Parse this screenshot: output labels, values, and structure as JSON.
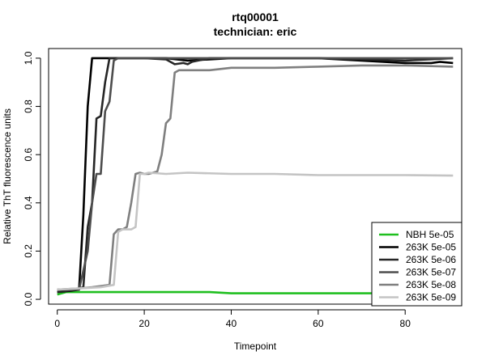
{
  "chart_data": {
    "type": "line",
    "title": "rtq00001",
    "subtitle": "technician: eric",
    "xlabel": "Timepoint",
    "ylabel": "Relative ThT fluorescence units",
    "xlim": [
      -2,
      93
    ],
    "ylim": [
      -0.02,
      1.04
    ],
    "xticks": [
      0,
      20,
      40,
      60,
      80
    ],
    "yticks": [
      0.0,
      0.2,
      0.4,
      0.6,
      0.8,
      1.0
    ],
    "xtick_labels": [
      "0",
      "20",
      "40",
      "60",
      "80"
    ],
    "ytick_labels": [
      "0.0",
      "0.2",
      "0.4",
      "0.6",
      "0.8",
      "1.0"
    ],
    "legend_position": "bottom-right",
    "grid": false,
    "series": [
      {
        "name": "NBH 5e-05",
        "color": "#1fbf1f",
        "points": [
          [
            0,
            0.02
          ],
          [
            2,
            0.03
          ],
          [
            5,
            0.03
          ],
          [
            10,
            0.03
          ],
          [
            15,
            0.03
          ],
          [
            20,
            0.03
          ],
          [
            25,
            0.03
          ],
          [
            30,
            0.03
          ],
          [
            35,
            0.03
          ],
          [
            40,
            0.025
          ],
          [
            50,
            0.025
          ],
          [
            60,
            0.025
          ],
          [
            70,
            0.025
          ],
          [
            80,
            0.025
          ],
          [
            91,
            0.025
          ]
        ]
      },
      {
        "name": "263K 5e-05",
        "color": "#000000",
        "points": [
          [
            0,
            0.03
          ],
          [
            3,
            0.035
          ],
          [
            5,
            0.04
          ],
          [
            6,
            0.35
          ],
          [
            7,
            0.8
          ],
          [
            8,
            1.0
          ],
          [
            10,
            1.0
          ],
          [
            20,
            1.0
          ],
          [
            25,
            1.0
          ],
          [
            30,
            0.99
          ],
          [
            40,
            1.0
          ],
          [
            50,
            1.0
          ],
          [
            60,
            1.0
          ],
          [
            70,
            0.99
          ],
          [
            80,
            0.98
          ],
          [
            86,
            0.98
          ],
          [
            88,
            0.985
          ],
          [
            91,
            0.98
          ]
        ]
      },
      {
        "name": "263K 5e-06",
        "color": "#262626",
        "points": [
          [
            0,
            0.03
          ],
          [
            4,
            0.04
          ],
          [
            6,
            0.05
          ],
          [
            7,
            0.3
          ],
          [
            8,
            0.4
          ],
          [
            9,
            0.75
          ],
          [
            10,
            0.76
          ],
          [
            11,
            0.9
          ],
          [
            12,
            1.0
          ],
          [
            20,
            1.0
          ],
          [
            25,
            0.995
          ],
          [
            27,
            0.975
          ],
          [
            29,
            0.98
          ],
          [
            30,
            0.975
          ],
          [
            31,
            0.985
          ],
          [
            35,
            1.0
          ],
          [
            50,
            1.0
          ],
          [
            60,
            1.0
          ],
          [
            80,
            0.99
          ],
          [
            91,
            1.0
          ]
        ]
      },
      {
        "name": "263K 5e-07",
        "color": "#4d4d4d",
        "points": [
          [
            0,
            0.04
          ],
          [
            5,
            0.04
          ],
          [
            7,
            0.2
          ],
          [
            8,
            0.4
          ],
          [
            9,
            0.52
          ],
          [
            10,
            0.52
          ],
          [
            11,
            0.78
          ],
          [
            12,
            0.82
          ],
          [
            13,
            0.99
          ],
          [
            14,
            1.0
          ],
          [
            20,
            1.0
          ],
          [
            40,
            1.0
          ],
          [
            60,
            1.0
          ],
          [
            80,
            1.0
          ],
          [
            91,
            1.0
          ]
        ]
      },
      {
        "name": "263K 5e-08",
        "color": "#7f7f7f",
        "points": [
          [
            0,
            0.04
          ],
          [
            5,
            0.045
          ],
          [
            8,
            0.05
          ],
          [
            12,
            0.06
          ],
          [
            13,
            0.27
          ],
          [
            14,
            0.29
          ],
          [
            15,
            0.29
          ],
          [
            16,
            0.3
          ],
          [
            17,
            0.4
          ],
          [
            18,
            0.52
          ],
          [
            19,
            0.525
          ],
          [
            20,
            0.52
          ],
          [
            21,
            0.52
          ],
          [
            22,
            0.525
          ],
          [
            23,
            0.53
          ],
          [
            24,
            0.6
          ],
          [
            25,
            0.73
          ],
          [
            26,
            0.75
          ],
          [
            27,
            0.94
          ],
          [
            28,
            0.95
          ],
          [
            30,
            0.95
          ],
          [
            35,
            0.95
          ],
          [
            40,
            0.96
          ],
          [
            50,
            0.96
          ],
          [
            60,
            0.965
          ],
          [
            70,
            0.97
          ],
          [
            80,
            0.97
          ],
          [
            91,
            0.965
          ]
        ]
      },
      {
        "name": "263K 5e-09",
        "color": "#c4c4c4",
        "points": [
          [
            0,
            0.04
          ],
          [
            5,
            0.045
          ],
          [
            10,
            0.05
          ],
          [
            13,
            0.06
          ],
          [
            14,
            0.28
          ],
          [
            15,
            0.29
          ],
          [
            17,
            0.29
          ],
          [
            18,
            0.3
          ],
          [
            19,
            0.52
          ],
          [
            20,
            0.52
          ],
          [
            21,
            0.525
          ],
          [
            25,
            0.52
          ],
          [
            30,
            0.525
          ],
          [
            40,
            0.52
          ],
          [
            50,
            0.52
          ],
          [
            60,
            0.515
          ],
          [
            70,
            0.515
          ],
          [
            80,
            0.515
          ],
          [
            91,
            0.513
          ]
        ]
      }
    ]
  }
}
